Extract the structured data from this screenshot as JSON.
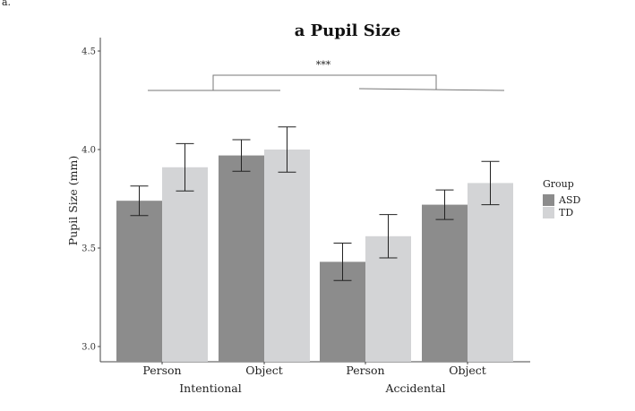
{
  "corner_label": "a.",
  "chart_data": {
    "type": "bar",
    "title": "a Pupil Size",
    "ylabel": "Pupil Size (mm)",
    "xlabel": "",
    "ylim": [
      3.0,
      4.5
    ],
    "yticks": [
      "3.0",
      "3.5",
      "4.0",
      "4.5"
    ],
    "grid": false,
    "categories": [
      {
        "label": "Person",
        "group": "Intentional"
      },
      {
        "label": "Object",
        "group": "Intentional"
      },
      {
        "label": "Person",
        "group": "Accidental"
      },
      {
        "label": "Object",
        "group": "Accidental"
      }
    ],
    "groups": [
      "Intentional",
      "Accidental"
    ],
    "series": [
      {
        "name": "ASD",
        "color": "#8c8c8c",
        "values": [
          3.74,
          3.97,
          3.43,
          3.72
        ],
        "error": [
          0.075,
          0.08,
          0.095,
          0.075
        ]
      },
      {
        "name": "TD",
        "color": "#d3d4d6",
        "values": [
          3.91,
          4.0,
          3.56,
          3.83
        ],
        "error": [
          0.12,
          0.115,
          0.11,
          0.11
        ]
      }
    ],
    "legend": {
      "title": "Group",
      "placement": "right"
    },
    "annotation": {
      "text": "***",
      "bracket_levels": [
        4.37,
        4.33
      ]
    }
  }
}
